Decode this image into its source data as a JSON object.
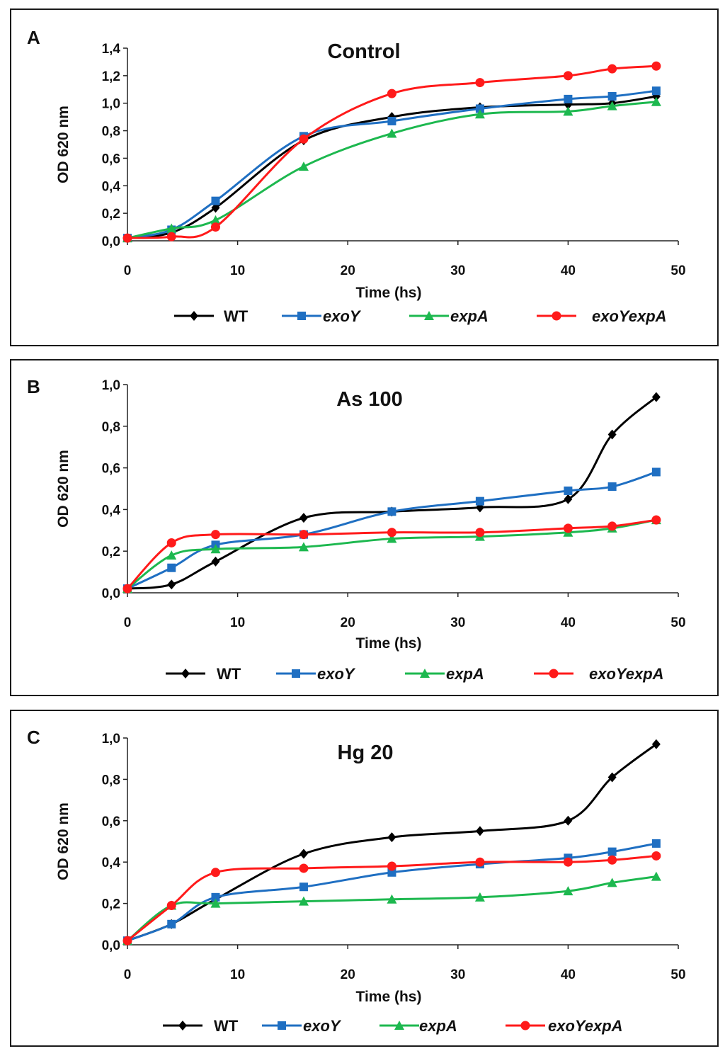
{
  "chart_data": [
    {
      "type": "line",
      "panel_letter": "A",
      "title": "Control",
      "xlabel": "Time (hs)",
      "ylabel": "OD 620 nm",
      "xlim": [
        0,
        50
      ],
      "ylim": [
        0,
        1.4
      ],
      "xticks": [
        "0",
        "10",
        "20",
        "30",
        "40",
        "50"
      ],
      "yticks": [
        "0,0",
        "0,2",
        "0,4",
        "0,6",
        "0,8",
        "1,0",
        "1,2",
        "1,4"
      ],
      "x": [
        0,
        4,
        8,
        16,
        24,
        32,
        40,
        44,
        48
      ],
      "legend_position": "bottom",
      "series": [
        {
          "name": "WT",
          "italic": false,
          "color": "#000000",
          "marker": "diamond",
          "values": [
            0.02,
            0.06,
            0.24,
            0.73,
            0.9,
            0.97,
            0.99,
            1.0,
            1.05
          ]
        },
        {
          "name": "exoY",
          "italic": true,
          "color": "#1f6fc2",
          "marker": "square",
          "values": [
            0.02,
            0.08,
            0.29,
            0.76,
            0.87,
            0.96,
            1.03,
            1.05,
            1.09
          ]
        },
        {
          "name": "expA",
          "italic": true,
          "color": "#1db84f",
          "marker": "triangle",
          "values": [
            0.02,
            0.09,
            0.15,
            0.54,
            0.78,
            0.92,
            0.94,
            0.98,
            1.01
          ]
        },
        {
          "name": "exoYexpA",
          "italic": true,
          "color": "#ff1a1a",
          "marker": "circle",
          "values": [
            0.02,
            0.03,
            0.1,
            0.74,
            1.07,
            1.15,
            1.2,
            1.25,
            1.27
          ]
        }
      ]
    },
    {
      "type": "line",
      "panel_letter": "B",
      "title": "As 100",
      "xlabel": "Time (hs)",
      "ylabel": "OD 620 nm",
      "xlim": [
        0,
        50
      ],
      "ylim": [
        0,
        1.0
      ],
      "xticks": [
        "0",
        "10",
        "20",
        "30",
        "40",
        "50"
      ],
      "yticks": [
        "0,0",
        "0,2",
        "0,4",
        "0,6",
        "0,8",
        "1,0"
      ],
      "x": [
        0,
        4,
        8,
        16,
        24,
        32,
        40,
        44,
        48
      ],
      "legend_position": "bottom",
      "series": [
        {
          "name": "WT",
          "italic": false,
          "color": "#000000",
          "marker": "diamond",
          "values": [
            0.02,
            0.04,
            0.15,
            0.36,
            0.39,
            0.41,
            0.45,
            0.76,
            0.94
          ]
        },
        {
          "name": "exoY",
          "italic": true,
          "color": "#1f6fc2",
          "marker": "square",
          "values": [
            0.02,
            0.12,
            0.23,
            0.28,
            0.39,
            0.44,
            0.49,
            0.51,
            0.58
          ]
        },
        {
          "name": "expA",
          "italic": true,
          "color": "#1db84f",
          "marker": "triangle",
          "values": [
            0.02,
            0.18,
            0.21,
            0.22,
            0.26,
            0.27,
            0.29,
            0.31,
            0.35
          ]
        },
        {
          "name": "exoYexpA",
          "italic": true,
          "color": "#ff1a1a",
          "marker": "circle",
          "values": [
            0.02,
            0.24,
            0.28,
            0.28,
            0.29,
            0.29,
            0.31,
            0.32,
            0.35
          ]
        }
      ]
    },
    {
      "type": "line",
      "panel_letter": "C",
      "title": "Hg 20",
      "xlabel": "Time (hs)",
      "ylabel": "OD 620 nm",
      "xlim": [
        0,
        50
      ],
      "ylim": [
        0,
        1.0
      ],
      "xticks": [
        "0",
        "10",
        "20",
        "30",
        "40",
        "50"
      ],
      "yticks": [
        "0,0",
        "0,2",
        "0,4",
        "0,6",
        "0,8",
        "1,0"
      ],
      "x": [
        0,
        4,
        8,
        16,
        24,
        32,
        40,
        44,
        48
      ],
      "legend_position": "bottom",
      "series": [
        {
          "name": "WT",
          "italic": false,
          "color": "#000000",
          "marker": "diamond",
          "values": [
            0.02,
            0.1,
            0.22,
            0.44,
            0.52,
            0.55,
            0.6,
            0.81,
            0.97
          ]
        },
        {
          "name": "exoY",
          "italic": true,
          "color": "#1f6fc2",
          "marker": "square",
          "values": [
            0.02,
            0.1,
            0.23,
            0.28,
            0.35,
            0.39,
            0.42,
            0.45,
            0.49
          ]
        },
        {
          "name": "expA",
          "italic": true,
          "color": "#1db84f",
          "marker": "triangle",
          "values": [
            0.02,
            0.19,
            0.2,
            0.21,
            0.22,
            0.23,
            0.26,
            0.3,
            0.33
          ]
        },
        {
          "name": "exoYexpA",
          "italic": true,
          "color": "#ff1a1a",
          "marker": "circle",
          "values": [
            0.02,
            0.19,
            0.35,
            0.37,
            0.38,
            0.4,
            0.4,
            0.41,
            0.43
          ]
        }
      ]
    }
  ]
}
